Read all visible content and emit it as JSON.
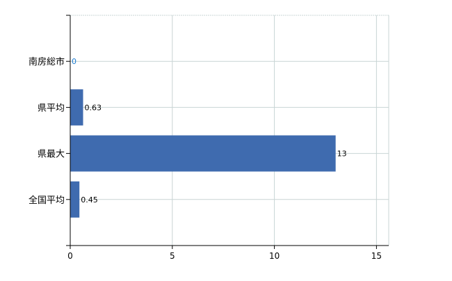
{
  "chart_data": {
    "type": "bar",
    "orientation": "horizontal",
    "categories": [
      "南房総市",
      "県平均",
      "県最大",
      "全国平均"
    ],
    "values": [
      0,
      0.63,
      13,
      0.45
    ],
    "data_labels": [
      "0",
      "0.63",
      "13",
      "0.45"
    ],
    "title": "",
    "xlabel": "",
    "ylabel": "",
    "xlim": [
      0,
      15.6
    ],
    "xticks": [
      0,
      5,
      10,
      15
    ],
    "xtick_labels": [
      "0",
      "5",
      "10",
      "15"
    ],
    "grid": true,
    "bar_color": "#3F6BAF",
    "grid_color": "#C8D4D4"
  }
}
